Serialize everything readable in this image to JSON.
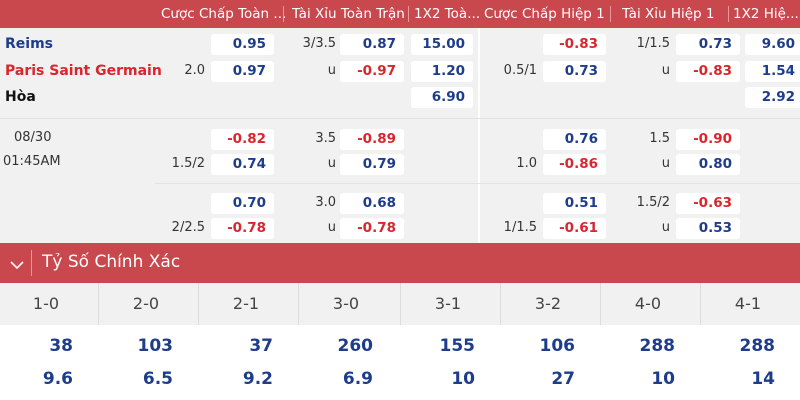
{
  "header": {
    "columns": [
      "Cược Chấp Toàn ...",
      "Tài Xỉu Toàn Trận",
      "1X2 Toà...",
      "Cược Chấp Hiệp 1",
      "Tài Xỉu Hiệp 1",
      "1X2 Hiệ..."
    ]
  },
  "match": {
    "home": "Reims",
    "away": "Paris Saint Germain",
    "draw": "Hòa",
    "date": "08/30",
    "time": "01:45AM"
  },
  "blocks": [
    {
      "ft_handicap": {
        "line": "2.0",
        "home": "0.95",
        "away": "0.97"
      },
      "ft_ou": {
        "line": "3/3.5",
        "over": "0.87",
        "under_label": "u",
        "under": "-0.97"
      },
      "ft_1x2": {
        "home": "15.00",
        "away": "1.20",
        "draw": "6.90"
      },
      "h1_handicap": {
        "line": "0.5/1",
        "home": "-0.83",
        "away": "0.73"
      },
      "h1_ou": {
        "line": "1/1.5",
        "over": "0.73",
        "under_label": "u",
        "under": "-0.83"
      },
      "h1_1x2": {
        "home": "9.60",
        "away": "1.54",
        "draw": "2.92"
      }
    },
    {
      "ft_handicap": {
        "line": "1.5/2",
        "home": "-0.82",
        "away": "0.74"
      },
      "ft_ou": {
        "line": "3.5",
        "over": "-0.89",
        "under_label": "u",
        "under": "0.79"
      },
      "h1_handicap": {
        "line": "1.0",
        "home": "0.76",
        "away": "-0.86"
      },
      "h1_ou": {
        "line": "1.5",
        "over": "-0.90",
        "under_label": "u",
        "under": "0.80"
      }
    },
    {
      "ft_handicap": {
        "line": "2/2.5",
        "home": "0.70",
        "away": "-0.78"
      },
      "ft_ou": {
        "line": "3.0",
        "over": "0.68",
        "under_label": "u",
        "under": "-0.78"
      },
      "h1_handicap": {
        "line": "1/1.5",
        "home": "0.51",
        "away": "-0.61"
      },
      "h1_ou": {
        "line": "1.5/2",
        "over": "-0.63",
        "under_label": "u",
        "under": "0.53"
      }
    }
  ],
  "correct_score": {
    "title": "Tỷ Số Chính Xác",
    "columns": [
      {
        "score": "1-0",
        "odds": [
          "38",
          "9.6"
        ]
      },
      {
        "score": "2-0",
        "odds": [
          "103",
          "6.5"
        ]
      },
      {
        "score": "2-1",
        "odds": [
          "37",
          "9.2"
        ]
      },
      {
        "score": "3-0",
        "odds": [
          "260",
          "6.9"
        ]
      },
      {
        "score": "3-1",
        "odds": [
          "155",
          "10"
        ]
      },
      {
        "score": "3-2",
        "odds": [
          "106",
          "27"
        ]
      },
      {
        "score": "4-0",
        "odds": [
          "288",
          "10"
        ]
      },
      {
        "score": "4-1",
        "odds": [
          "288",
          "14"
        ]
      }
    ]
  }
}
